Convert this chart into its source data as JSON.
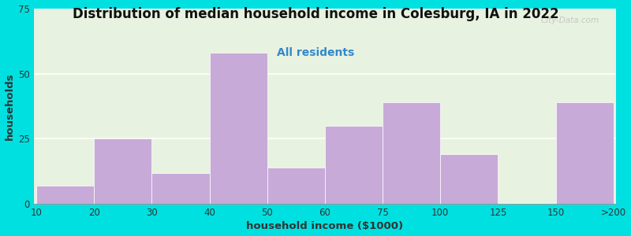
{
  "title": "Distribution of median household income in Colesburg, IA in 2022",
  "subtitle": "All residents",
  "xlabel": "household income ($1000)",
  "ylabel": "households",
  "title_fontsize": 12,
  "subtitle_fontsize": 10,
  "axis_label_fontsize": 9.5,
  "tick_fontsize": 8.5,
  "tick_labels": [
    "10",
    "20",
    "30",
    "40",
    "50",
    "60",
    "75",
    "100",
    "125",
    "150",
    ">200"
  ],
  "tick_positions": [
    0,
    1,
    2,
    3,
    4,
    5,
    6,
    7,
    8,
    9,
    10
  ],
  "bar_lefts": [
    0,
    1,
    2,
    3,
    4,
    5,
    6,
    7,
    9
  ],
  "bar_widths": [
    1,
    1,
    1,
    1,
    1,
    1,
    1,
    1,
    1
  ],
  "bar_heights": [
    7,
    25,
    12,
    58,
    14,
    30,
    39,
    19,
    39
  ],
  "bar_color": "#c8aad8",
  "bar_edgecolor": "#ffffff",
  "outer_bg": "#00e0e0",
  "plot_bg": "#e8f2e0",
  "grid_color": "#ffffff",
  "spine_color": "#999999",
  "title_color": "#111111",
  "subtitle_color": "#3388cc",
  "ylabel_color": "#333333",
  "xlabel_color": "#333333",
  "tick_color": "#333333",
  "watermark": "City-Data.com",
  "ylim": [
    0,
    75
  ],
  "yticks": [
    0,
    25,
    50,
    75
  ]
}
